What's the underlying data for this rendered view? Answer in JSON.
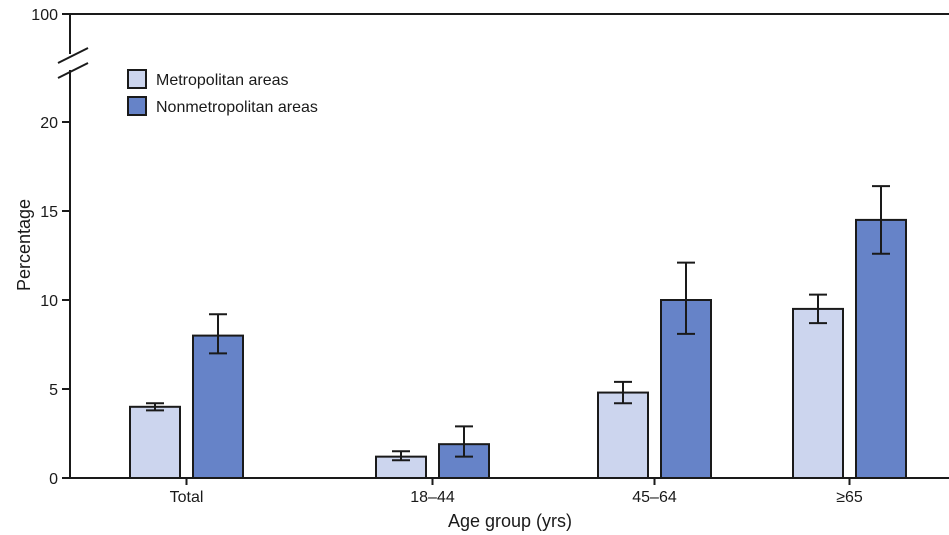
{
  "chart_data": {
    "type": "bar",
    "categories": [
      "Total",
      "18–44",
      "45–64",
      "≥65"
    ],
    "series": [
      {
        "name": "Metropolitan areas",
        "color": "#ccd5ee",
        "values": [
          4.0,
          1.2,
          4.8,
          9.5
        ],
        "error_low": [
          3.8,
          1.0,
          4.2,
          8.7
        ],
        "error_high": [
          4.2,
          1.5,
          5.4,
          10.3
        ]
      },
      {
        "name": "Nonmetropolitan areas",
        "color": "#6683c8",
        "values": [
          8.0,
          1.9,
          10.0,
          14.5
        ],
        "error_low": [
          7.0,
          1.2,
          8.1,
          12.6
        ],
        "error_high": [
          9.2,
          2.9,
          12.1,
          16.4
        ]
      }
    ],
    "xlabel": "Age group (yrs)",
    "ylabel": "Percentage",
    "ylim": [
      0,
      20
    ],
    "yticks": [
      "0",
      "5",
      "10",
      "15",
      "20"
    ],
    "axis_break_top_label": "100",
    "legend_position": "top-left",
    "grid": false
  }
}
